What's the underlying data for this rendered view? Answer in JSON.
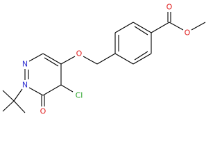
{
  "atoms": {
    "n_ring_top": "N",
    "n_ring_tbu": "N",
    "o_ring_carbonyl": "O",
    "cl": "Cl",
    "o_ether": "O",
    "o_ester_carbonyl": "O",
    "o_ester": "O"
  }
}
